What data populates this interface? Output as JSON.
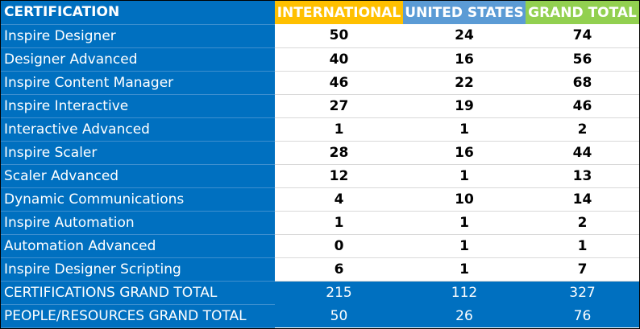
{
  "header": {
    "label": "CERTIFICATION",
    "international": "INTERNATIONAL",
    "united_states": "UNITED STATES",
    "grand_total": "GRAND TOTAL"
  },
  "colors": {
    "label_bg": "#0070c0",
    "international_header": "#ffc000",
    "united_states_header": "#5b9bd5",
    "grand_total_header": "#92d050"
  },
  "rows": [
    {
      "name": "Inspire Designer",
      "international": "50",
      "united_states": "24",
      "grand_total": "74"
    },
    {
      "name": "Designer Advanced",
      "international": "40",
      "united_states": "16",
      "grand_total": "56"
    },
    {
      "name": "Inspire Content Manager",
      "international": "46",
      "united_states": "22",
      "grand_total": "68"
    },
    {
      "name": "Inspire Interactive",
      "international": "27",
      "united_states": "19",
      "grand_total": "46"
    },
    {
      "name": "Interactive Advanced",
      "international": "1",
      "united_states": "1",
      "grand_total": "2"
    },
    {
      "name": "Inspire Scaler",
      "international": "28",
      "united_states": "16",
      "grand_total": "44"
    },
    {
      "name": "Scaler Advanced",
      "international": "12",
      "united_states": "1",
      "grand_total": "13"
    },
    {
      "name": "Dynamic Communications",
      "international": "4",
      "united_states": "10",
      "grand_total": "14"
    },
    {
      "name": "Inspire Automation",
      "international": "1",
      "united_states": "1",
      "grand_total": "2"
    },
    {
      "name": "Automation Advanced",
      "international": "0",
      "united_states": "1",
      "grand_total": "1"
    },
    {
      "name": "Inspire Designer Scripting",
      "international": "6",
      "united_states": "1",
      "grand_total": "7"
    }
  ],
  "totals": [
    {
      "name": "CERTIFICATIONS GRAND TOTAL",
      "international": "215",
      "united_states": "112",
      "grand_total": "327"
    },
    {
      "name": "PEOPLE/RESOURCES GRAND TOTAL",
      "international": "50",
      "united_states": "26",
      "grand_total": "76"
    }
  ]
}
